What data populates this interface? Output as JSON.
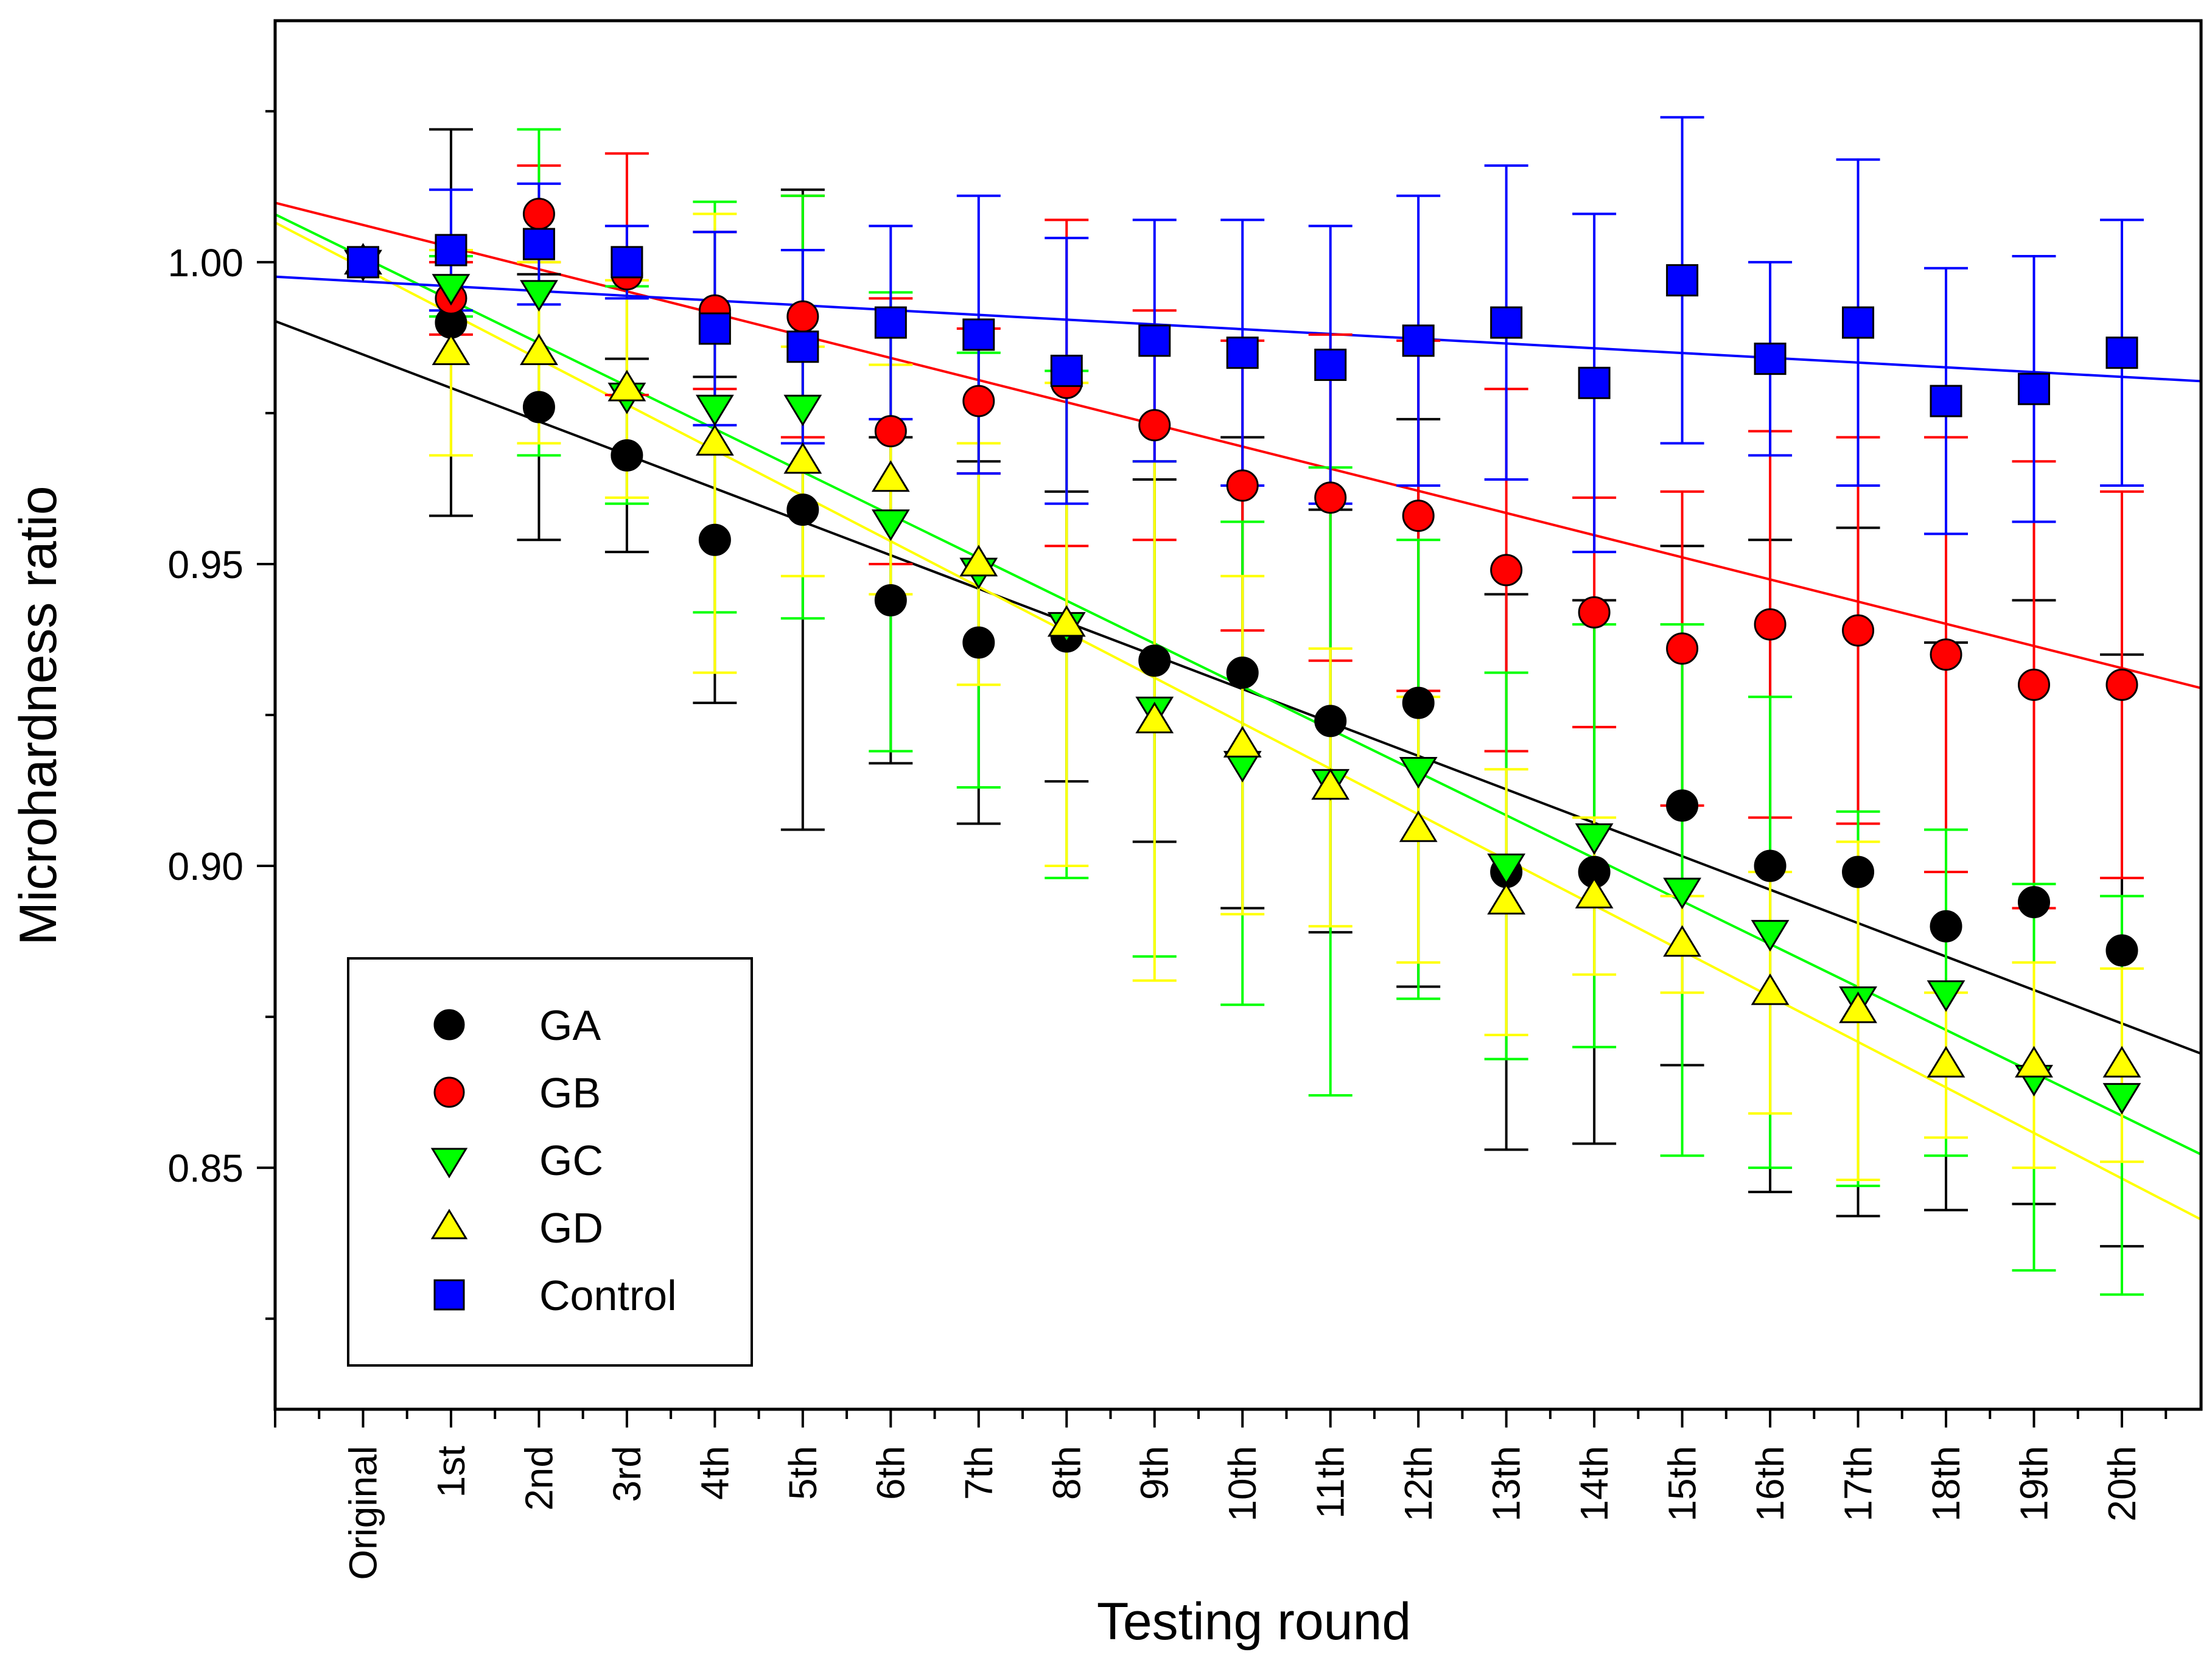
{
  "chart_data": {
    "type": "scatter",
    "title": "",
    "xlabel": "Testing round",
    "ylabel": "Microhardness ratio",
    "categories": [
      "Original",
      "1st",
      "2nd",
      "3rd",
      "4th",
      "5th",
      "6th",
      "7th",
      "8th",
      "9th",
      "10th",
      "11th",
      "12th",
      "13th",
      "14th",
      "15th",
      "16th",
      "17th",
      "18th",
      "19th",
      "20th"
    ],
    "x_domain": [
      -1,
      20.9
    ],
    "ylim": [
      0.81,
      1.04
    ],
    "yticks": [
      0.85,
      0.9,
      0.95,
      1.0
    ],
    "ytick_labels": [
      "0.85",
      "0.90",
      "0.95",
      "1.00"
    ],
    "grid": false,
    "legend_position": "bottom-left",
    "series": [
      {
        "name": "GA",
        "marker": "circle",
        "color": "#000000",
        "values": [
          1.0,
          0.99,
          0.976,
          0.968,
          0.954,
          0.959,
          0.944,
          0.937,
          0.938,
          0.934,
          0.932,
          0.924,
          0.927,
          0.899,
          0.899,
          0.91,
          0.9,
          0.899,
          0.89,
          0.894,
          0.886
        ],
        "errors": [
          0,
          0.032,
          0.022,
          0.016,
          0.027,
          0.053,
          0.027,
          0.03,
          0.024,
          0.03,
          0.039,
          0.035,
          0.047,
          0.046,
          0.045,
          0.043,
          0.054,
          0.057,
          0.047,
          0.05,
          0.049
        ],
        "fit": {
          "slope": -0.00554,
          "intercept": 0.9847
        }
      },
      {
        "name": "GB",
        "marker": "circle",
        "color": "#ff0000",
        "values": [
          1.0,
          0.994,
          1.008,
          0.998,
          0.992,
          0.991,
          0.972,
          0.977,
          0.98,
          0.973,
          0.963,
          0.961,
          0.958,
          0.949,
          0.942,
          0.936,
          0.94,
          0.939,
          0.935,
          0.93,
          0.93
        ],
        "errors": [
          0,
          0.006,
          0.008,
          0.02,
          0.013,
          0.02,
          0.022,
          0.012,
          0.027,
          0.019,
          0.024,
          0.027,
          0.029,
          0.03,
          0.019,
          0.026,
          0.032,
          0.032,
          0.036,
          0.037,
          0.032
        ],
        "fit": {
          "slope": -0.00367,
          "intercept": 1.00616
        }
      },
      {
        "name": "GC",
        "marker": "triangle-down",
        "color": "#00ff00",
        "values": [
          1.0,
          0.996,
          0.995,
          0.978,
          0.976,
          0.976,
          0.957,
          0.949,
          0.94,
          0.926,
          0.917,
          0.914,
          0.916,
          0.9,
          0.905,
          0.896,
          0.889,
          0.878,
          0.879,
          0.865,
          0.862
        ],
        "errors": [
          0,
          0.005,
          0.027,
          0.018,
          0.034,
          0.035,
          0.038,
          0.036,
          0.042,
          0.041,
          0.04,
          0.052,
          0.038,
          0.032,
          0.035,
          0.044,
          0.039,
          0.031,
          0.027,
          0.032,
          0.033
        ],
        "fit": {
          "slope": -0.00711,
          "intercept": 1.00081
        }
      },
      {
        "name": "GD",
        "marker": "triangle-up",
        "color": "#ffff00",
        "values": [
          1.0,
          0.985,
          0.985,
          0.979,
          0.97,
          0.967,
          0.964,
          0.95,
          0.94,
          0.924,
          0.92,
          0.913,
          0.906,
          0.894,
          0.895,
          0.887,
          0.879,
          0.876,
          0.867,
          0.867,
          0.867
        ],
        "errors": [
          0,
          0.017,
          0.015,
          0.018,
          0.038,
          0.019,
          0.019,
          0.02,
          0.04,
          0.043,
          0.028,
          0.023,
          0.022,
          0.022,
          0.013,
          0.008,
          0.02,
          0.028,
          0.012,
          0.017,
          0.016
        ],
        "fit": {
          "slope": -0.00754,
          "intercept": 0.99902
        }
      },
      {
        "name": "Control",
        "marker": "square",
        "color": "#0000ff",
        "values": [
          1.0,
          1.002,
          1.003,
          1.0,
          0.989,
          0.986,
          0.99,
          0.988,
          0.982,
          0.987,
          0.985,
          0.983,
          0.987,
          0.99,
          0.98,
          0.997,
          0.984,
          0.99,
          0.977,
          0.979,
          0.985
        ],
        "errors": [
          0,
          0.01,
          0.01,
          0.006,
          0.016,
          0.016,
          0.016,
          0.023,
          0.022,
          0.02,
          0.022,
          0.023,
          0.024,
          0.026,
          0.028,
          0.027,
          0.016,
          0.027,
          0.022,
          0.022,
          0.022
        ],
        "fit": {
          "slope": -0.00079,
          "intercept": 0.9968
        }
      }
    ]
  }
}
